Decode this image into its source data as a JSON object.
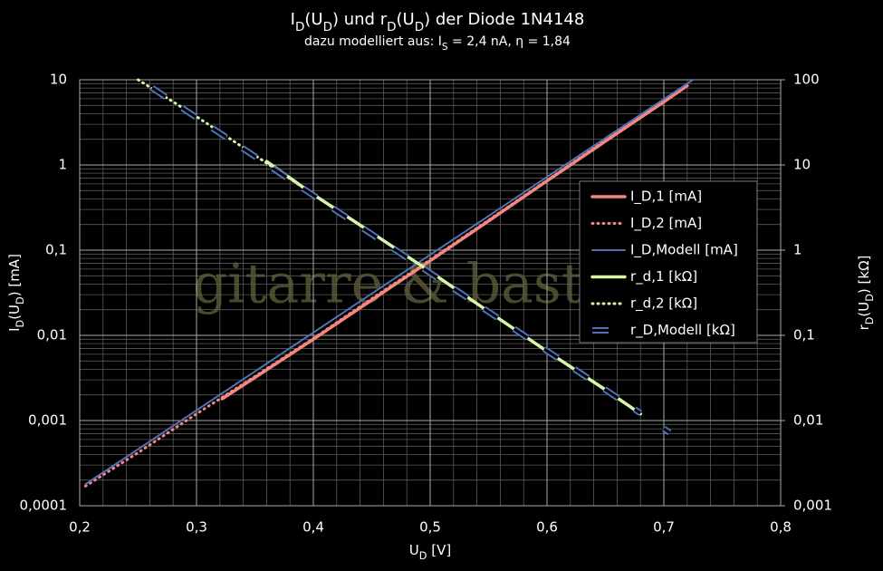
{
  "chart_data": {
    "type": "line",
    "title": [
      {
        "text": "I"
      },
      {
        "text": "D",
        "sub": true
      },
      {
        "text": "(U"
      },
      {
        "text": "D",
        "sub": true
      },
      {
        "text": ") und r"
      },
      {
        "text": "D",
        "sub": true
      },
      {
        "text": "(U"
      },
      {
        "text": "D",
        "sub": true
      },
      {
        "text": ") der Diode 1N4148"
      }
    ],
    "subtitle": [
      {
        "text": "dazu modelliert aus: I"
      },
      {
        "text": "S",
        "sub": true
      },
      {
        "text": " = 2,4 nA, η = 1,84"
      }
    ],
    "xlabel": [
      {
        "text": "U"
      },
      {
        "text": "D",
        "sub": true
      },
      {
        "text": " [V]"
      }
    ],
    "ylabel": [
      {
        "text": "I"
      },
      {
        "text": "D",
        "sub": true
      },
      {
        "text": "(U"
      },
      {
        "text": "D",
        "sub": true
      },
      {
        "text": ") [mA]"
      }
    ],
    "y2label": [
      {
        "text": "r"
      },
      {
        "text": "D",
        "sub": true
      },
      {
        "text": "(U"
      },
      {
        "text": "D",
        "sub": true
      },
      {
        "text": ") [kΩ]"
      }
    ],
    "watermark": "gitarre & basteln",
    "xlim": [
      0.2,
      0.8
    ],
    "xticks": [
      {
        "value": 0.2,
        "label": "0,2"
      },
      {
        "value": 0.3,
        "label": "0,3"
      },
      {
        "value": 0.4,
        "label": "0,4"
      },
      {
        "value": 0.5,
        "label": "0,5"
      },
      {
        "value": 0.6,
        "label": "0,6"
      },
      {
        "value": 0.7,
        "label": "0,7"
      },
      {
        "value": 0.8,
        "label": "0,8"
      }
    ],
    "ylim": [
      0.0001,
      10
    ],
    "yticks": [
      {
        "value": 0.0001,
        "label": "0,0001"
      },
      {
        "value": 0.001,
        "label": "0,001"
      },
      {
        "value": 0.01,
        "label": "0,01"
      },
      {
        "value": 0.1,
        "label": "0,1"
      },
      1,
      10
    ],
    "y2lim": [
      0.001,
      100
    ],
    "y2ticks": [
      {
        "value": 0.001,
        "label": "0,001"
      },
      {
        "value": 0.01,
        "label": "0,01"
      },
      {
        "value": 0.1,
        "label": "0,1"
      },
      1,
      10,
      100
    ],
    "log_scale": true,
    "grid": true,
    "legend": "right",
    "series": [
      {
        "name": "I_D,1 [mA]",
        "color": "#f4877f",
        "style": "solid",
        "x": [
          0.322,
          0.35,
          0.4,
          0.45,
          0.5,
          0.55,
          0.6,
          0.65,
          0.7,
          0.72
        ],
        "values": [
          0.0018,
          0.0032,
          0.009,
          0.026,
          0.075,
          0.22,
          0.65,
          1.9,
          5.5,
          8.5
        ]
      },
      {
        "name": "I_D,2 [mA]",
        "color": "#f4877f",
        "style": "dotted",
        "x": [
          0.205,
          0.25,
          0.3,
          0.35,
          0.4,
          0.45,
          0.5,
          0.55,
          0.6,
          0.65,
          0.7,
          0.72
        ],
        "values": [
          0.00017,
          0.00042,
          0.0012,
          0.0033,
          0.0092,
          0.027,
          0.077,
          0.225,
          0.66,
          1.95,
          5.6,
          8.6
        ]
      },
      {
        "name": "I_D,Modell [mA]",
        "color": "#4f72b8",
        "style": "outline",
        "x": [
          0.205,
          0.25,
          0.3,
          0.35,
          0.4,
          0.45,
          0.5,
          0.55,
          0.6,
          0.65,
          0.7,
          0.725
        ],
        "values": [
          0.000179,
          0.000461,
          0.00132,
          0.00377,
          0.0108,
          0.0309,
          0.0883,
          0.252,
          0.724,
          2.07,
          5.93,
          10
        ]
      },
      {
        "name": "r_d,1 [kΩ]",
        "color": "#d8f5a8",
        "style": "solid",
        "axis": "y2",
        "x": [
          0.36,
          0.4,
          0.45,
          0.5,
          0.55,
          0.6,
          0.65,
          0.68
        ],
        "values": [
          11,
          4.5,
          1.6,
          0.56,
          0.19,
          0.065,
          0.023,
          0.012
        ]
      },
      {
        "name": "r_d,2 [kΩ]",
        "color": "#d8f5a8",
        "style": "dotted",
        "axis": "y2",
        "x": [
          0.25,
          0.3,
          0.35,
          0.4,
          0.45,
          0.5,
          0.55,
          0.6,
          0.65,
          0.68
        ],
        "values": [
          100,
          37,
          13,
          4.5,
          1.6,
          0.56,
          0.19,
          0.065,
          0.023,
          0.012
        ]
      },
      {
        "name": "r_D,Modell [kΩ]",
        "color": "#4f72b8",
        "style": "outline-dashed",
        "axis": "y2",
        "x": [
          0.262,
          0.3,
          0.35,
          0.4,
          0.45,
          0.5,
          0.55,
          0.6,
          0.65,
          0.68,
          0.69,
          0.7,
          0.705
        ],
        "values": [
          80.2,
          36,
          12.6,
          4.4,
          1.54,
          0.539,
          0.189,
          0.0657,
          0.023,
          0.0122,
          null,
          0.00802,
          0.0072
        ]
      }
    ]
  }
}
